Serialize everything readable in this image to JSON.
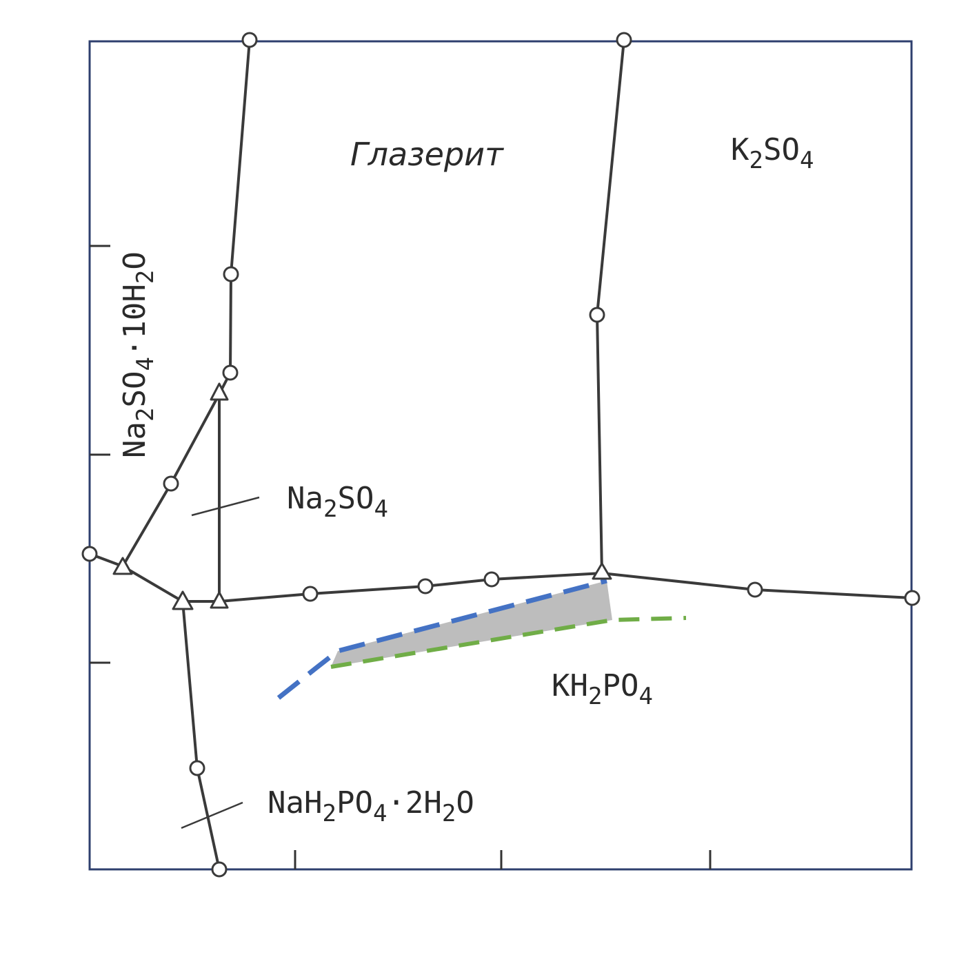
{
  "title": "",
  "colors": {
    "blue_dashed": "#4472c4",
    "green_dashed": "#70ad47",
    "shaded_region": "#bdbdbd",
    "boundary_lines": "#3a3a3a",
    "frame": "#2e3f6e"
  },
  "fields": {
    "glaserite": "Глазерит",
    "k2so4": {
      "main": "K",
      "sub1": "2",
      "mid": "SO",
      "sub2": "4"
    },
    "na2so4_10h2o": {
      "a": "Na",
      "s1": "2",
      "b": "SO",
      "s2": "4",
      "c": "·10H",
      "s3": "2",
      "d": "O"
    },
    "na2so4": {
      "a": "Na",
      "s1": "2",
      "b": "SO",
      "s2": "4"
    },
    "kh2po4": {
      "a": "KH",
      "s1": "2",
      "b": "PO",
      "s2": "4"
    },
    "nah2po4_2h2o": {
      "a": "NaH",
      "s1": "2",
      "b": "PO",
      "s2": "4",
      "c": "·2H",
      "s3": "2",
      "d": "O"
    }
  }
}
